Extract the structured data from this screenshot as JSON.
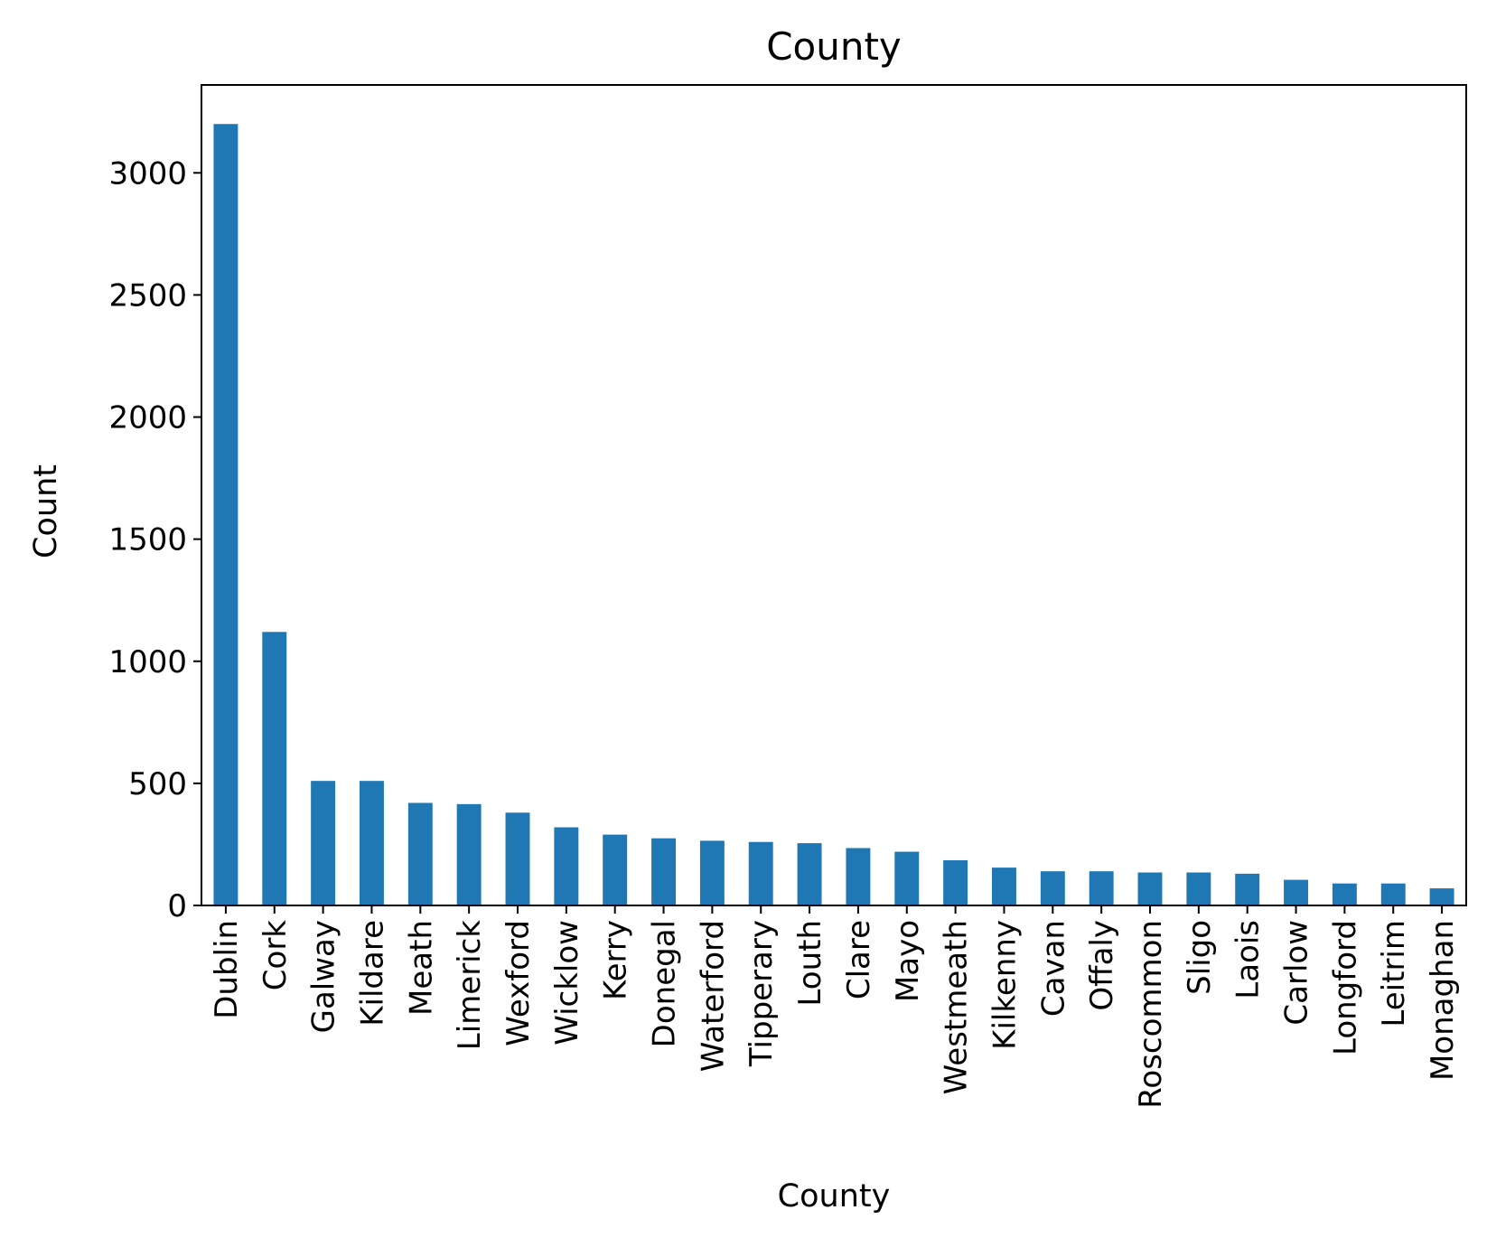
{
  "chart_data": {
    "type": "bar",
    "title": "County",
    "xlabel": "County",
    "ylabel": "Count",
    "categories": [
      "Dublin",
      "Cork",
      "Galway",
      "Kildare",
      "Meath",
      "Limerick",
      "Wexford",
      "Wicklow",
      "Kerry",
      "Donegal",
      "Waterford",
      "Tipperary",
      "Louth",
      "Clare",
      "Mayo",
      "Westmeath",
      "Kilkenny",
      "Cavan",
      "Offaly",
      "Roscommon",
      "Sligo",
      "Laois",
      "Carlow",
      "Longford",
      "Leitrim",
      "Monaghan"
    ],
    "values": [
      3200,
      1120,
      510,
      510,
      420,
      415,
      380,
      320,
      290,
      275,
      265,
      260,
      255,
      235,
      220,
      185,
      155,
      140,
      140,
      135,
      135,
      130,
      105,
      90,
      90,
      70
    ],
    "ylim": [
      0,
      3360
    ],
    "yticks": [
      0,
      500,
      1000,
      1500,
      2000,
      2500,
      3000
    ],
    "bar_color": "#1f77b4",
    "grid": false,
    "legend": "none"
  }
}
